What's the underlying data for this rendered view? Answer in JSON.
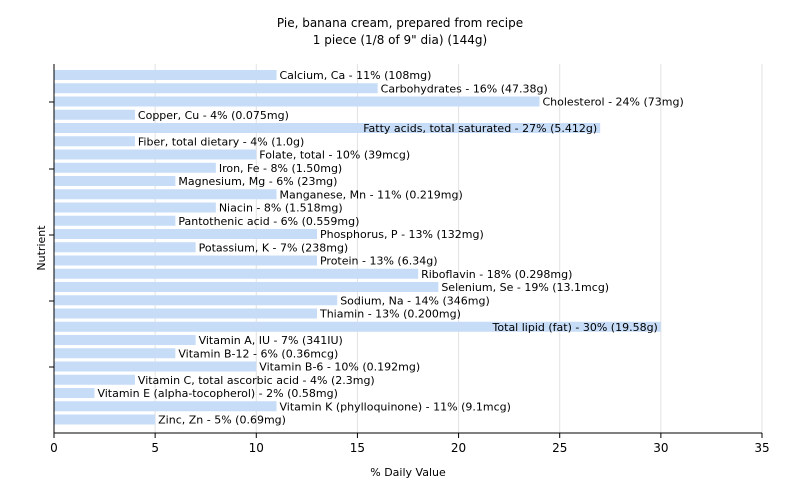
{
  "chart_data": {
    "type": "bar",
    "orientation": "horizontal",
    "title": "Pie, banana cream, prepared from recipe",
    "subtitle": "1 piece (1/8 of 9\" dia) (144g)",
    "xlabel": "% Daily Value",
    "ylabel": "Nutrient",
    "xlim": [
      0,
      35
    ],
    "xticks": [
      0,
      5,
      10,
      15,
      20,
      25,
      30,
      35
    ],
    "grid": true,
    "bar_color": "#c6dcf7",
    "categories": [
      "Calcium, Ca",
      "Carbohydrates",
      "Cholesterol",
      "Copper, Cu",
      "Fatty acids, total saturated",
      "Fiber, total dietary",
      "Folate, total",
      "Iron, Fe",
      "Magnesium, Mg",
      "Manganese, Mn",
      "Niacin",
      "Pantothenic acid",
      "Phosphorus, P",
      "Potassium, K",
      "Protein",
      "Riboflavin",
      "Selenium, Se",
      "Sodium, Na",
      "Thiamin",
      "Total lipid (fat)",
      "Vitamin A, IU",
      "Vitamin B-12",
      "Vitamin B-6",
      "Vitamin C, total ascorbic acid",
      "Vitamin E (alpha-tocopherol)",
      "Vitamin K (phylloquinone)",
      "Zinc, Zn"
    ],
    "values": [
      11,
      16,
      24,
      4,
      27,
      4,
      10,
      8,
      6,
      11,
      8,
      6,
      13,
      7,
      13,
      18,
      19,
      14,
      13,
      30,
      7,
      6,
      10,
      4,
      2,
      11,
      5
    ],
    "labels": [
      "Calcium, Ca - 11% (108mg)",
      "Carbohydrates - 16% (47.38g)",
      "Cholesterol - 24% (73mg)",
      "Copper, Cu - 4% (0.075mg)",
      "Fatty acids, total saturated - 27% (5.412g)",
      "Fiber, total dietary - 4% (1.0g)",
      "Folate, total - 10% (39mcg)",
      "Iron, Fe - 8% (1.50mg)",
      "Magnesium, Mg - 6% (23mg)",
      "Manganese, Mn - 11% (0.219mg)",
      "Niacin - 8% (1.518mg)",
      "Pantothenic acid - 6% (0.559mg)",
      "Phosphorus, P - 13% (132mg)",
      "Potassium, K - 7% (238mg)",
      "Protein - 13% (6.34g)",
      "Riboflavin - 18% (0.298mg)",
      "Selenium, Se - 19% (13.1mcg)",
      "Sodium, Na - 14% (346mg)",
      "Thiamin - 13% (0.200mg)",
      "Total lipid (fat) - 30% (19.58g)",
      "Vitamin A, IU - 7% (341IU)",
      "Vitamin B-12 - 6% (0.36mcg)",
      "Vitamin B-6 - 10% (0.192mg)",
      "Vitamin C, total ascorbic acid - 4% (2.3mg)",
      "Vitamin E (alpha-tocopherol) - 2% (0.58mg)",
      "Vitamin K (phylloquinone) - 11% (9.1mcg)",
      "Zinc, Zn - 5% (0.69mg)"
    ]
  }
}
